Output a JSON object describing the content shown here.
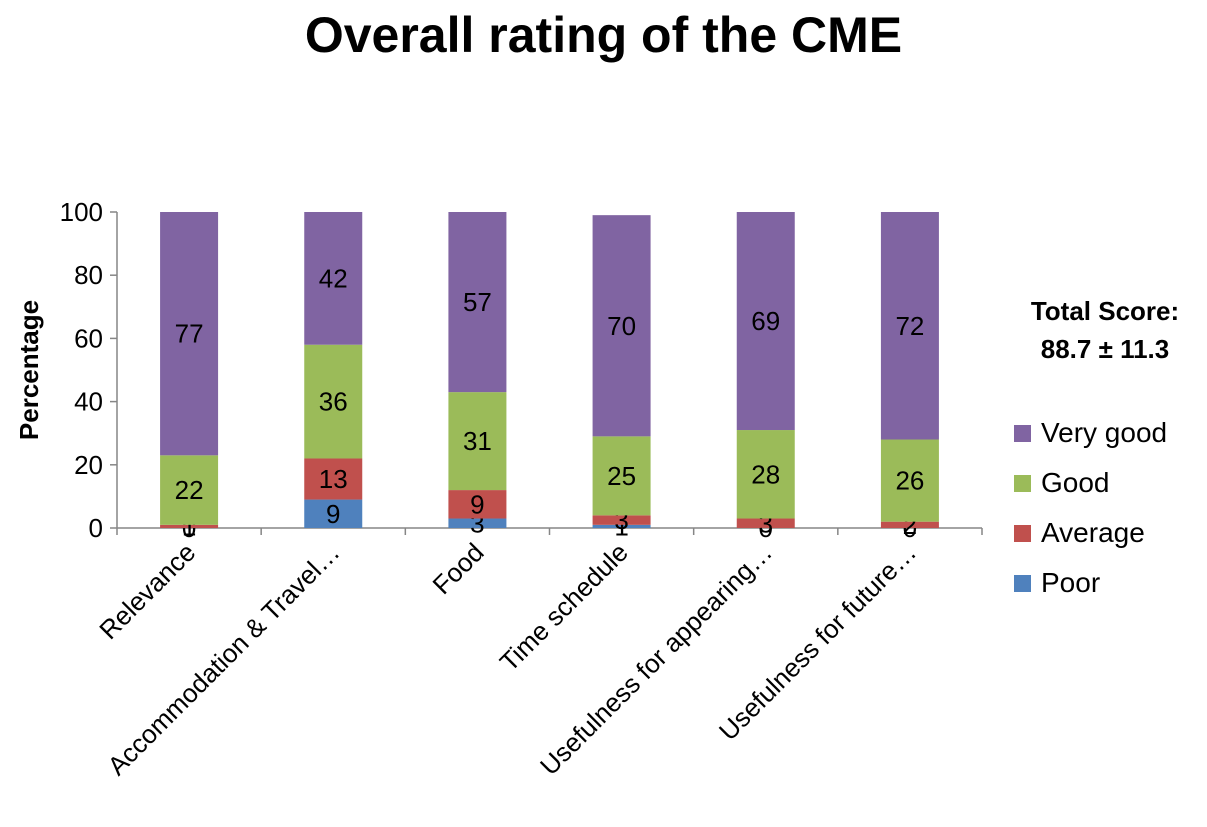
{
  "chart_data": {
    "type": "bar",
    "stacked": true,
    "title": "Overall rating of the CME",
    "ylabel": "Percentage",
    "xlabel": "",
    "ylim": [
      0,
      100
    ],
    "yticks": [
      0,
      20,
      40,
      60,
      80,
      100
    ],
    "grid": false,
    "legend_position": "right",
    "categories": [
      "Relevance",
      "Accommodation & Travel…",
      "Food",
      "Time schedule",
      "Usefulness for appearing…",
      "Usefulness for future…"
    ],
    "series": [
      {
        "name": "Poor",
        "color": "#4f81bd",
        "values": [
          0,
          9,
          3,
          1,
          0,
          0
        ]
      },
      {
        "name": "Average",
        "color": "#c0504d",
        "values": [
          1,
          13,
          9,
          3,
          3,
          2
        ]
      },
      {
        "name": "Good",
        "color": "#9bbb59",
        "values": [
          22,
          36,
          31,
          25,
          28,
          26
        ]
      },
      {
        "name": "Very good",
        "color": "#8064a2",
        "values": [
          77,
          42,
          57,
          70,
          69,
          72
        ]
      }
    ],
    "annotation": {
      "line1": "Total Score:",
      "line2": "88.7 ± 11.3"
    }
  }
}
